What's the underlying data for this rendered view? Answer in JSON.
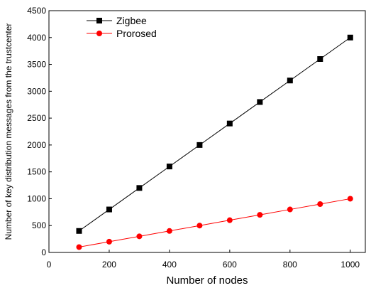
{
  "chart_data": {
    "type": "line",
    "title": "",
    "xlabel": "Number of nodes",
    "ylabel": "Number of key distribution messages from the trustcenter",
    "xlim": [
      0,
      1050
    ],
    "ylim": [
      0,
      4500
    ],
    "x_ticks": [
      0,
      200,
      400,
      600,
      800,
      1000
    ],
    "y_ticks": [
      0,
      500,
      1000,
      1500,
      2000,
      2500,
      3000,
      3500,
      4000,
      4500
    ],
    "x": [
      100,
      200,
      300,
      400,
      500,
      600,
      700,
      800,
      900,
      1000
    ],
    "series": [
      {
        "name": "Zigbee",
        "values": [
          400,
          800,
          1200,
          1600,
          2000,
          2400,
          2800,
          3200,
          3600,
          4000
        ],
        "marker": "square",
        "color": "#000000",
        "line_color": "#000000"
      },
      {
        "name": "Prorosed",
        "values": [
          100,
          200,
          300,
          400,
          500,
          600,
          700,
          800,
          900,
          1000
        ],
        "marker": "circle",
        "color": "#ff0000",
        "line_color": "#ff0000"
      }
    ],
    "grid": false,
    "legend_position": "top-left"
  }
}
